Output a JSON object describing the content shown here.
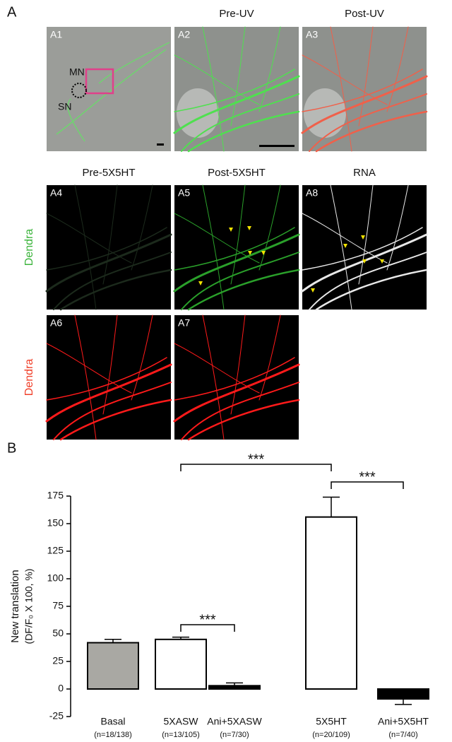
{
  "panel_a": {
    "letter": "A",
    "column_titles": [
      "Pre-UV",
      "Post-UV"
    ],
    "row2_titles": [
      "Pre-5X5HT",
      "Post-5X5HT",
      "RNA"
    ],
    "image_labels": [
      "A1",
      "A2",
      "A3",
      "A4",
      "A5",
      "A8",
      "A6",
      "A7"
    ],
    "cell_labels": [
      "MN",
      "SN"
    ],
    "row_labels": [
      "Dendra",
      "Dendra"
    ]
  },
  "chart_data": {
    "type": "bar",
    "panel_letter": "B",
    "y_label": [
      "New translation",
      "(DF/F₀ X 100, %)"
    ],
    "categories": [
      "Basal",
      "5XASW",
      "Ani+5XASW",
      "5X5HT",
      "Ani+5X5HT"
    ],
    "sample_sizes": [
      "(n=18/138)",
      "(n=13/105)",
      "(n=7/30)",
      "(n=20/109)",
      "(n=7/40)"
    ],
    "values": [
      42,
      45,
      3,
      156,
      -9
    ],
    "errors": [
      3,
      2,
      2.5,
      18,
      5
    ],
    "colors": [
      "#a9a8a3",
      "#ffffff",
      "#000000",
      "#ffffff",
      "#000000"
    ],
    "ylim": [
      -25,
      175
    ],
    "yticks": [
      -25,
      0,
      25,
      50,
      75,
      100,
      125,
      150,
      175
    ],
    "significance": [
      {
        "pair": [
          1,
          3
        ],
        "label": "***"
      },
      {
        "pair": [
          3,
          4
        ],
        "label": "***"
      },
      {
        "pair": [
          1,
          2
        ],
        "label": "***"
      }
    ]
  }
}
